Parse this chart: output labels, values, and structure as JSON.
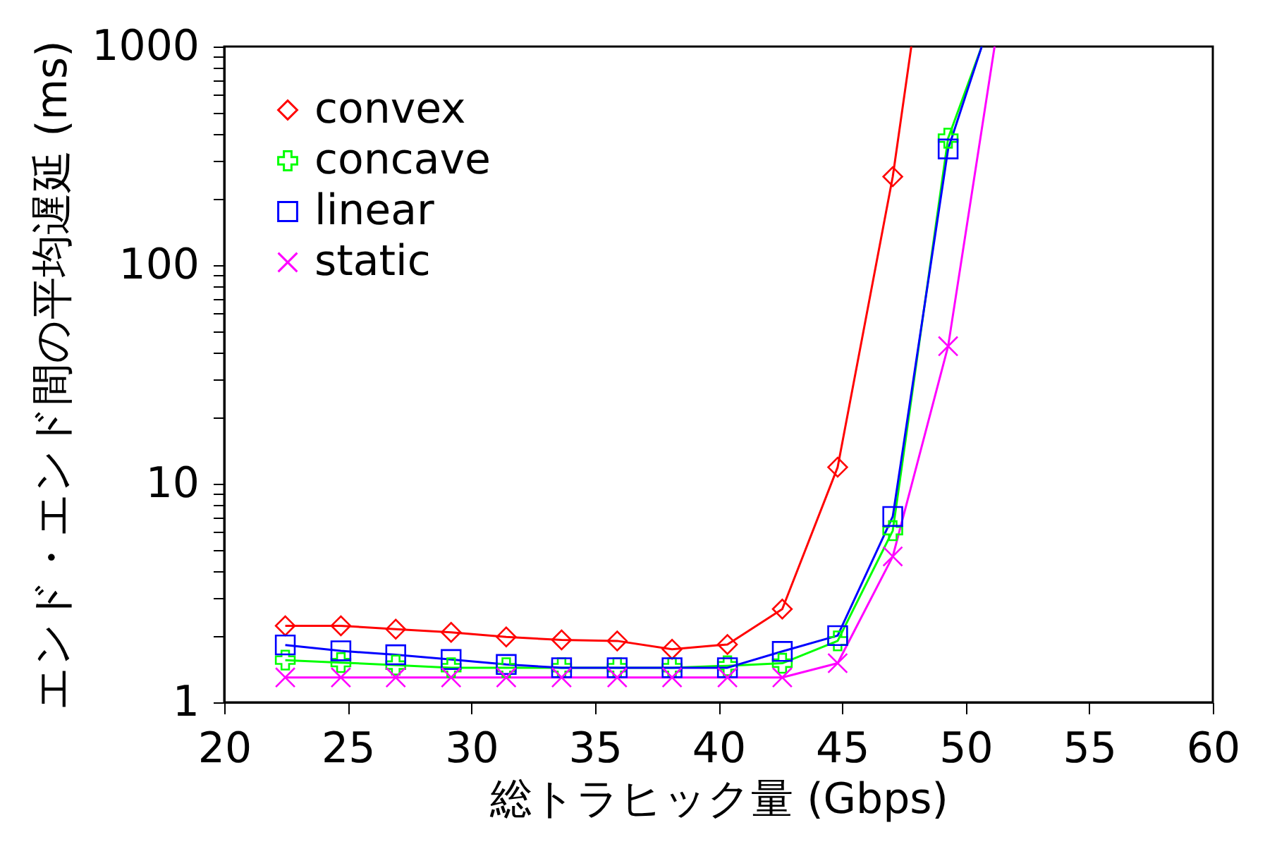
{
  "chart_data": {
    "type": "line",
    "xlabel": "総トラヒック量 (Gbps)",
    "ylabel": "エンド・エンド間の平均遅延 (ms)",
    "log": "y",
    "grid": false,
    "legend": "top left",
    "line_style": "solid",
    "xlim": [
      20,
      60
    ],
    "xticks": [
      20,
      25,
      30,
      35,
      40,
      45,
      50,
      55,
      60
    ],
    "ylim": [
      1,
      1000
    ],
    "yticks": [
      1,
      {
        "value": 2,
        "label": null
      },
      {
        "value": 3,
        "label": null
      },
      {
        "value": 4,
        "label": null
      },
      {
        "value": 5,
        "label": null
      },
      {
        "value": 6,
        "label": null
      },
      {
        "value": 7,
        "label": null
      },
      {
        "value": 8,
        "label": null
      },
      {
        "value": 9,
        "label": null
      },
      10,
      {
        "value": 20,
        "label": null
      },
      {
        "value": 30,
        "label": null
      },
      {
        "value": 40,
        "label": null
      },
      {
        "value": 50,
        "label": null
      },
      {
        "value": 60,
        "label": null
      },
      {
        "value": 70,
        "label": null
      },
      {
        "value": 80,
        "label": null
      },
      {
        "value": 90,
        "label": null
      },
      100,
      {
        "value": 200,
        "label": null
      },
      {
        "value": 300,
        "label": null
      },
      {
        "value": 400,
        "label": null
      },
      {
        "value": 500,
        "label": null
      },
      {
        "value": 600,
        "label": null
      },
      {
        "value": 700,
        "label": null
      },
      {
        "value": 800,
        "label": null
      },
      {
        "value": 900,
        "label": null
      },
      1000
    ],
    "series": [
      {
        "name": "convex",
        "color": "#ff0000",
        "marker": "diamond",
        "x": [
          22.47,
          24.72,
          26.94,
          29.18,
          31.41,
          33.65,
          35.9,
          38.12,
          40.36,
          42.58,
          44.82,
          47.05,
          47.8
        ],
        "values": [
          2.24,
          2.24,
          2.16,
          2.09,
          1.99,
          1.93,
          1.91,
          1.75,
          1.84,
          2.67,
          11.9,
          254,
          1000
        ]
      },
      {
        "name": "concave",
        "color": "#00ff00",
        "marker": "plus",
        "x": [
          22.47,
          24.72,
          26.94,
          29.18,
          31.41,
          33.65,
          35.9,
          38.12,
          40.36,
          42.58,
          44.82,
          47.05,
          49.29,
          50.65
        ],
        "values": [
          1.56,
          1.52,
          1.48,
          1.44,
          1.44,
          1.44,
          1.44,
          1.44,
          1.47,
          1.51,
          1.91,
          6.1,
          381,
          1000
        ]
      },
      {
        "name": "linear",
        "color": "#0000ff",
        "marker": "square",
        "x": [
          22.47,
          24.72,
          26.94,
          29.18,
          31.41,
          33.65,
          35.9,
          38.12,
          40.36,
          42.58,
          44.82,
          47.05,
          49.29,
          50.65
        ],
        "values": [
          1.83,
          1.72,
          1.65,
          1.57,
          1.49,
          1.44,
          1.44,
          1.44,
          1.44,
          1.71,
          2.02,
          7.08,
          340,
          1000
        ]
      },
      {
        "name": "static",
        "color": "#ff00ff",
        "marker": "cross",
        "x": [
          22.47,
          24.72,
          26.94,
          29.18,
          31.41,
          33.65,
          35.9,
          38.12,
          40.36,
          42.58,
          44.82,
          47.05,
          49.29,
          51.17
        ],
        "values": [
          1.3,
          1.3,
          1.3,
          1.3,
          1.3,
          1.3,
          1.3,
          1.3,
          1.3,
          1.3,
          1.51,
          4.65,
          42.6,
          1000
        ]
      }
    ]
  }
}
